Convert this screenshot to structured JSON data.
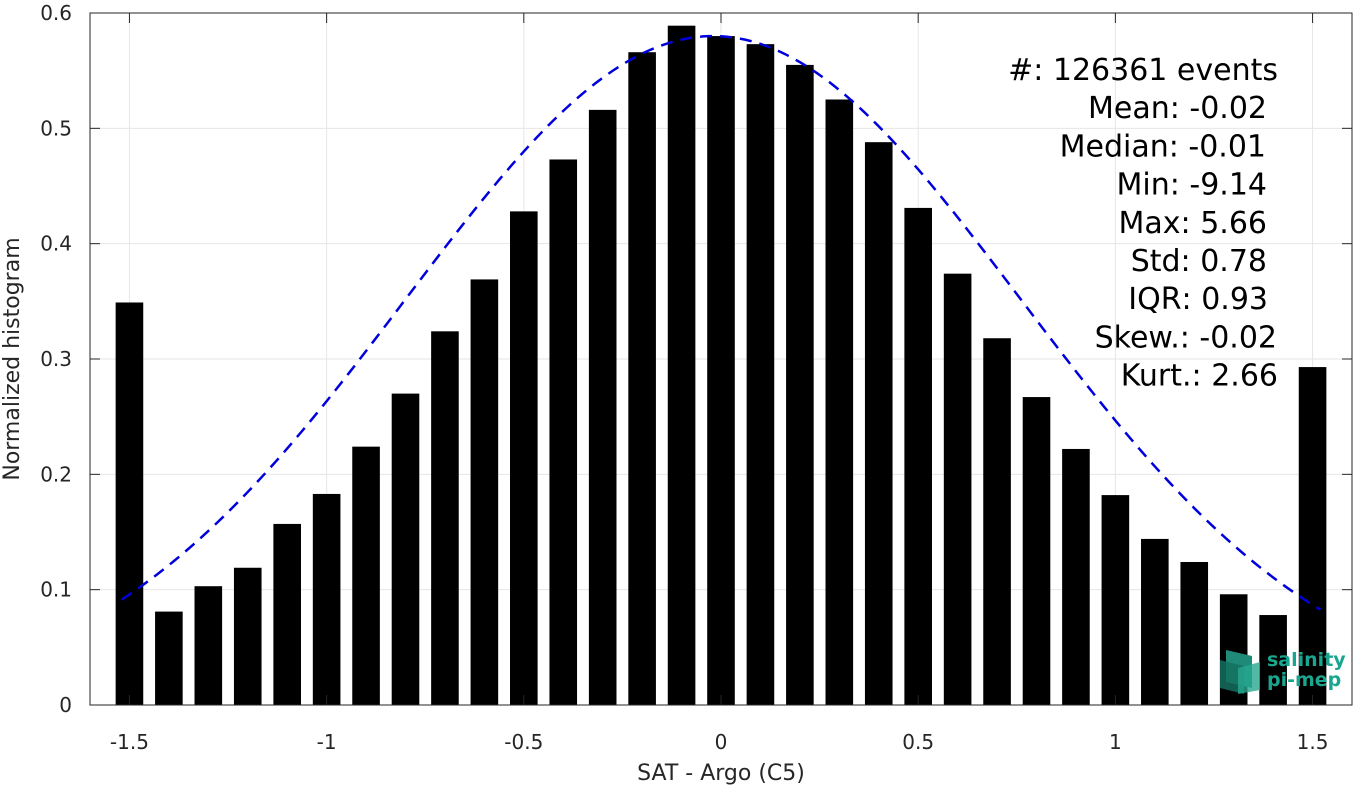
{
  "chart_data": {
    "type": "bar",
    "xlabel": "SAT - Argo (C5)",
    "ylabel": "Normalized histogram",
    "xlim": [
      -1.6,
      1.6
    ],
    "ylim": [
      0,
      0.6
    ],
    "xticks": [
      -1.5,
      -1,
      -0.5,
      0,
      0.5,
      1,
      1.5
    ],
    "xtick_labels": [
      "-1.5",
      "-1",
      "-0.5",
      "0",
      "0.5",
      "1",
      "1.5"
    ],
    "yticks": [
      0,
      0.1,
      0.2,
      0.3,
      0.4,
      0.5,
      0.6
    ],
    "ytick_labels": [
      "0",
      "0.1",
      "0.2",
      "0.3",
      "0.4",
      "0.5",
      "0.6"
    ],
    "grid": true,
    "bar_width": 0.07,
    "bars": {
      "x": [
        -1.5,
        -1.4,
        -1.3,
        -1.2,
        -1.1,
        -1.0,
        -0.9,
        -0.8,
        -0.7,
        -0.6,
        -0.5,
        -0.4,
        -0.3,
        -0.2,
        -0.1,
        0.0,
        0.1,
        0.2,
        0.3,
        0.4,
        0.5,
        0.6,
        0.7,
        0.8,
        0.9,
        1.0,
        1.1,
        1.2,
        1.3,
        1.4,
        1.5
      ],
      "values": [
        0.349,
        0.081,
        0.103,
        0.119,
        0.157,
        0.183,
        0.224,
        0.27,
        0.324,
        0.369,
        0.428,
        0.473,
        0.516,
        0.566,
        0.589,
        0.58,
        0.573,
        0.555,
        0.525,
        0.488,
        0.431,
        0.374,
        0.318,
        0.267,
        0.222,
        0.182,
        0.144,
        0.124,
        0.096,
        0.078,
        0.293
      ],
      "color": "#000000"
    },
    "fit": {
      "kind": "gaussian",
      "mean": -0.02,
      "std": 0.78,
      "peak": 0.58,
      "x_range": [
        -1.52,
        1.52
      ],
      "color": "#0000dd",
      "style": "dashed"
    },
    "annotations": [
      {
        "label": "#  ",
        "value": ": 126361 events"
      },
      {
        "label": "Mean ",
        "value": ": -0.02"
      },
      {
        "label": "Median ",
        "value": ": -0.01"
      },
      {
        "label": "Min ",
        "value": ": -9.14"
      },
      {
        "label": "Max ",
        "value": ": 5.66"
      },
      {
        "label": "Std ",
        "value": ": 0.78"
      },
      {
        "label": "IQR ",
        "value": ": 0.93"
      },
      {
        "label": "Skew. ",
        "value": ": -0.02"
      },
      {
        "label": "Kurt. ",
        "value": ": 2.66"
      }
    ],
    "annotation_placement": "top-right"
  },
  "logo": {
    "line1": "salinity",
    "line2": "pi-mep",
    "color": "#1aa58f"
  }
}
